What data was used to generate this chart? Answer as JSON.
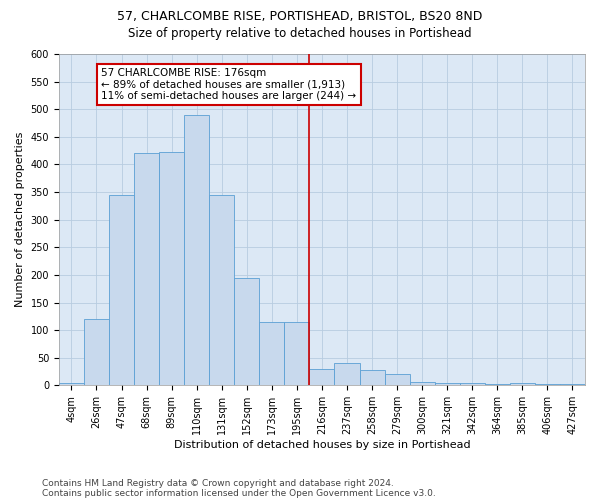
{
  "title1": "57, CHARLCOMBE RISE, PORTISHEAD, BRISTOL, BS20 8ND",
  "title2": "Size of property relative to detached houses in Portishead",
  "xlabel": "Distribution of detached houses by size in Portishead",
  "ylabel": "Number of detached properties",
  "footer1": "Contains HM Land Registry data © Crown copyright and database right 2024.",
  "footer2": "Contains public sector information licensed under the Open Government Licence v3.0.",
  "annotation_line1": "57 CHARLCOMBE RISE: 176sqm",
  "annotation_line2": "← 89% of detached houses are smaller (1,913)",
  "annotation_line3": "11% of semi-detached houses are larger (244) →",
  "bar_labels": [
    "4sqm",
    "26sqm",
    "47sqm",
    "68sqm",
    "89sqm",
    "110sqm",
    "131sqm",
    "152sqm",
    "173sqm",
    "195sqm",
    "216sqm",
    "237sqm",
    "258sqm",
    "279sqm",
    "300sqm",
    "321sqm",
    "342sqm",
    "364sqm",
    "385sqm",
    "406sqm",
    "427sqm"
  ],
  "bar_values": [
    4,
    120,
    345,
    420,
    422,
    490,
    345,
    195,
    115,
    115,
    30,
    40,
    28,
    20,
    6,
    5,
    5,
    2,
    5,
    2,
    3
  ],
  "bar_color": "#c8d9ed",
  "bar_edge_color": "#5a9fd4",
  "vline_x": 9.5,
  "vline_color": "#cc0000",
  "ylim": [
    0,
    600
  ],
  "yticks": [
    0,
    50,
    100,
    150,
    200,
    250,
    300,
    350,
    400,
    450,
    500,
    550,
    600
  ],
  "background_color": "#ffffff",
  "plot_bg_color": "#dce8f5",
  "grid_color": "#b8cce0",
  "annotation_box_color": "#cc0000",
  "title_fontsize": 9,
  "subtitle_fontsize": 8.5,
  "axis_label_fontsize": 8,
  "tick_fontsize": 7,
  "footer_fontsize": 6.5,
  "ann_fontsize": 7.5
}
